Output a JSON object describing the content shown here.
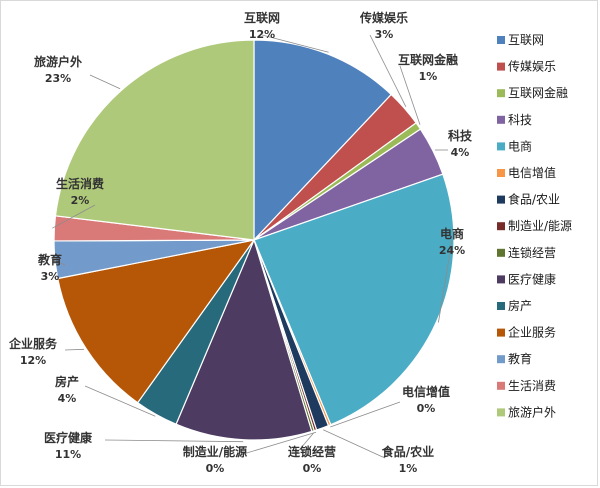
{
  "chart_data": {
    "type": "pie",
    "title": "",
    "legend_position": "right",
    "categories": [
      "互联网",
      "传媒娱乐",
      "互联网金融",
      "科技",
      "电商",
      "电信增值",
      "食品/农业",
      "制造业/能源",
      "连锁经营",
      "医疗健康",
      "房产",
      "企业服务",
      "教育",
      "生活消费",
      "旅游户外"
    ],
    "values": [
      12,
      3,
      0.6,
      4,
      24,
      0.2,
      1,
      0.2,
      0.2,
      11,
      3.5,
      12,
      3,
      2,
      23
    ],
    "percent_labels": [
      "12%",
      "3%",
      "1%",
      "4%",
      "24%",
      "0%",
      "1%",
      "0%",
      "0%",
      "11%",
      "4%",
      "12%",
      "3%",
      "2%",
      "23%"
    ],
    "colors": [
      "#4F81BD",
      "#C0504D",
      "#9BBB59",
      "#8064A2",
      "#4BACC6",
      "#F79646",
      "#1F3A5F",
      "#772C2A",
      "#5F7530",
      "#4D3B62",
      "#276A7C",
      "#B65708",
      "#729ACA",
      "#D97A78",
      "#AFC97A"
    ]
  }
}
